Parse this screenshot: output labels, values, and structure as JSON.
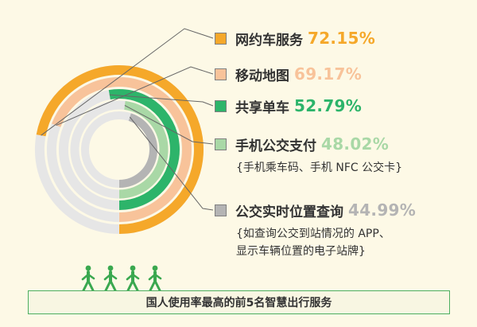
{
  "chart_data": {
    "type": "radial bar",
    "title": "国人使用率最高的前5名智慧出行服务",
    "unit": "%",
    "series": [
      {
        "name": "网约车服务",
        "value": 72.15,
        "value_label": "72.15%",
        "color": "#f5a82a"
      },
      {
        "name": "移动地图",
        "value": 69.17,
        "value_label": "69.17%",
        "color": "#f8c39a"
      },
      {
        "name": "共享单车",
        "value": 52.79,
        "value_label": "52.79%",
        "color": "#2db46a"
      },
      {
        "name": "手机公交支付",
        "value": 48.02,
        "value_label": "48.02%",
        "color": "#a9d8a6",
        "note": "{手机乘车码、手机 NFC 公交卡}"
      },
      {
        "name": "公交实时位置查询",
        "value": 44.99,
        "value_label": "44.99%",
        "color": "#b4b4b4",
        "note": "{如查询公交到站情况的 APP、\n显示车辆位置的电子站牌}"
      }
    ],
    "track_color": "#e6e6e6"
  },
  "footer": {
    "title": "国人使用率最高的前5名智慧出行服务",
    "border_color": "#4caf60"
  },
  "icons": {
    "people": "walking-person-icon",
    "count": 4,
    "color": "#3aa84f"
  }
}
